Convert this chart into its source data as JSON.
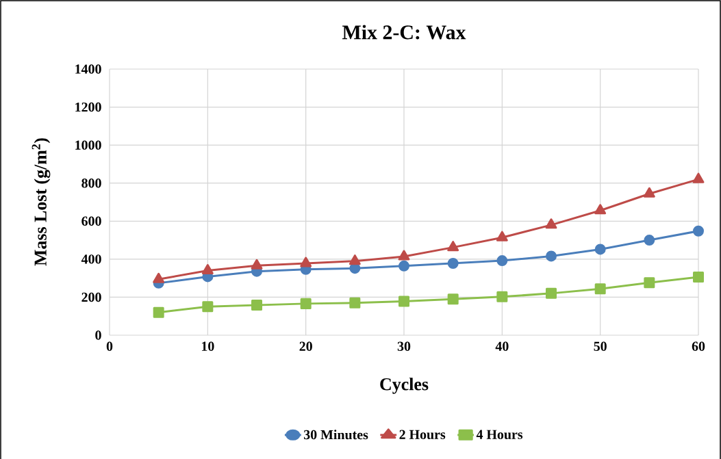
{
  "chart_data": {
    "type": "line",
    "title": "Mix 2-C: Wax",
    "xlabel": "Cycles",
    "ylabel": "Mass Lost (g/m$^{2}$)",
    "x": [
      5,
      10,
      15,
      20,
      25,
      30,
      35,
      40,
      45,
      50,
      55,
      60
    ],
    "series": [
      {
        "name": "30 Minutes",
        "color": "#4a7ebb",
        "marker": "circle",
        "values": [
          274,
          308,
          336,
          346,
          352,
          364,
          378,
          392,
          416,
          452,
          500,
          548
        ]
      },
      {
        "name": "2 Hours",
        "color": "#be4b48",
        "marker": "triangle",
        "values": [
          294,
          340,
          366,
          378,
          390,
          414,
          462,
          514,
          580,
          656,
          744,
          820
        ]
      },
      {
        "name": "4 Hours",
        "color": "#8cbf4b",
        "marker": "square",
        "values": [
          120,
          150,
          158,
          166,
          170,
          178,
          190,
          202,
          220,
          244,
          276,
          306
        ]
      }
    ],
    "xlim": [
      0,
      60
    ],
    "xticks": [
      0,
      10,
      20,
      30,
      40,
      50,
      60
    ],
    "ylim": [
      0,
      1400
    ],
    "yticks": [
      0,
      200,
      400,
      600,
      800,
      1000,
      1200,
      1400
    ],
    "grid": true,
    "legend": "bottom",
    "line_style": "solid"
  }
}
